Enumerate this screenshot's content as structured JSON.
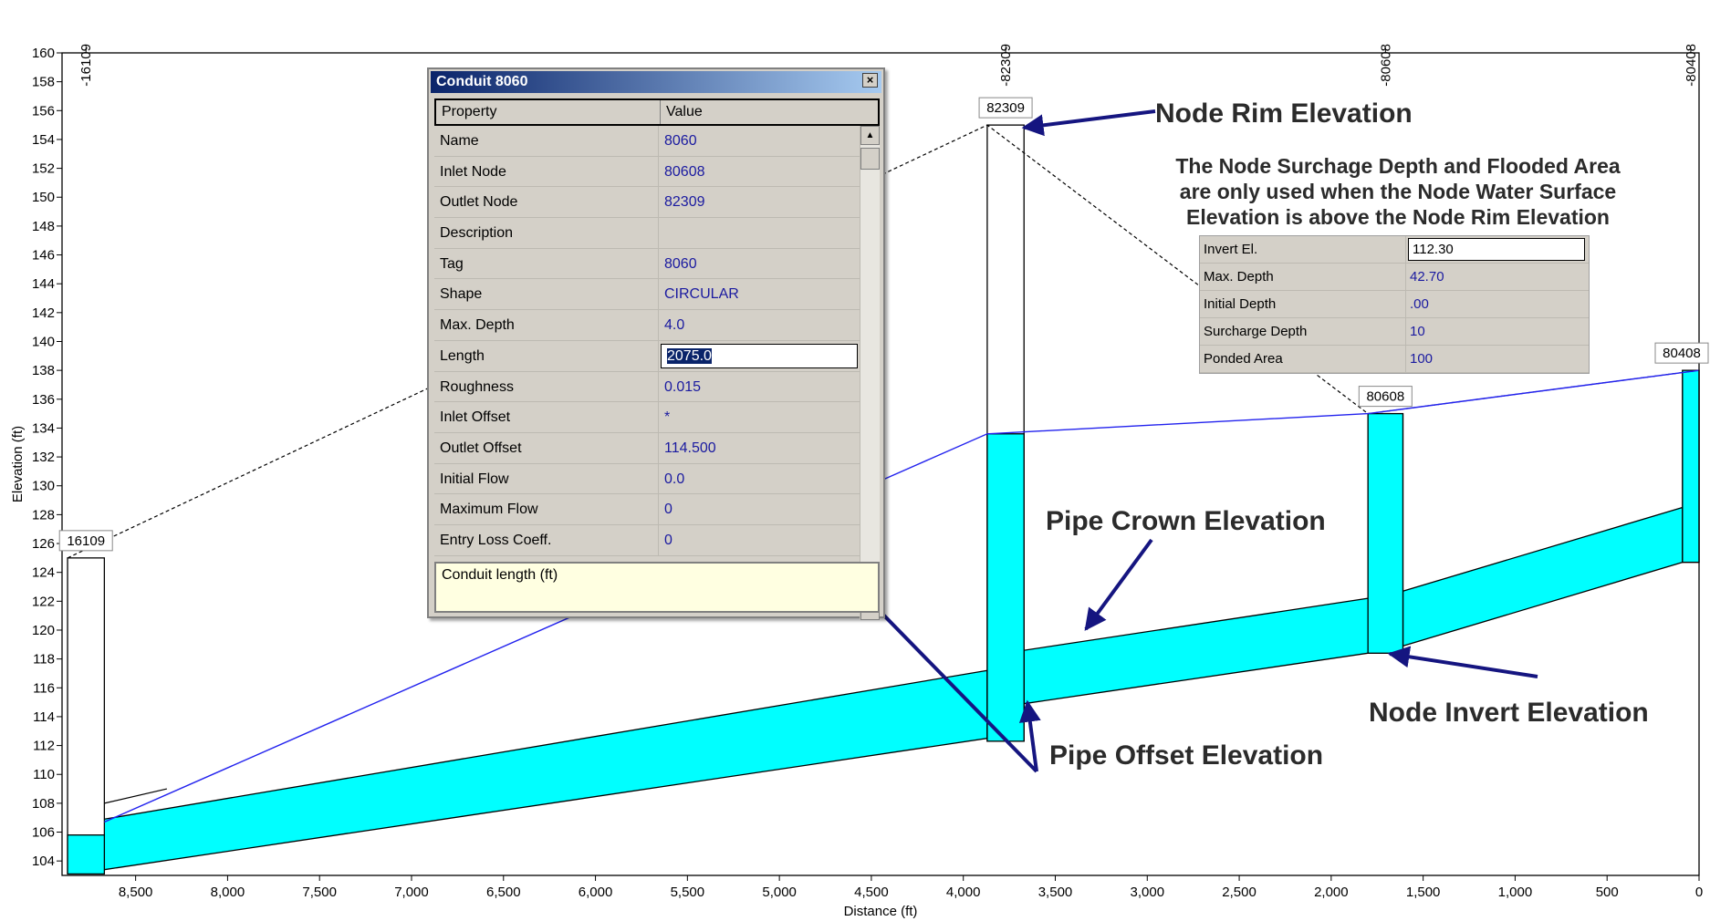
{
  "chart_data": {
    "type": "profile",
    "xlabel": "Distance (ft)",
    "ylabel": "Elevation (ft)",
    "xlim": [
      0,
      8900
    ],
    "xreversed": true,
    "ylim": [
      103,
      160
    ],
    "x_ticks": [
      8500,
      8000,
      7500,
      7000,
      6500,
      6000,
      5500,
      5000,
      4500,
      4000,
      3500,
      3000,
      2500,
      2000,
      1500,
      1000,
      500,
      0
    ],
    "x_tick_labels": [
      "8,500",
      "8,000",
      "7,500",
      "7,000",
      "6,500",
      "6,000",
      "5,500",
      "5,000",
      "4,500",
      "4,000",
      "3,500",
      "3,000",
      "2,500",
      "2,000",
      "1,500",
      "1,000",
      "500",
      "0"
    ],
    "y_ticks": [
      104,
      106,
      108,
      110,
      112,
      114,
      116,
      118,
      120,
      122,
      124,
      126,
      128,
      130,
      132,
      134,
      136,
      138,
      140,
      142,
      144,
      146,
      148,
      150,
      152,
      154,
      156,
      158,
      160
    ],
    "y_tick_labels": [
      "104",
      "106",
      "108",
      "110",
      "112",
      "114",
      "116",
      "118",
      "120",
      "122",
      "124",
      "126",
      "128",
      "130",
      "132",
      "134",
      "136",
      "138",
      "140",
      "142",
      "144",
      "146",
      "148",
      "150",
      "152",
      "154",
      "156",
      "158",
      "160"
    ],
    "nodes": [
      {
        "name": "16109",
        "x_left": 8870,
        "x_right": 8670,
        "invert": 103.1,
        "rim": 125.0,
        "water": 105.8
      },
      {
        "name": "82309",
        "x_left": 3870,
        "x_right": 3670,
        "invert": 112.3,
        "rim": 155.0,
        "water": 133.6
      },
      {
        "name": "80608",
        "x_left": 1800,
        "x_right": 1610,
        "invert": 118.4,
        "rim": 135.0,
        "water": 135.0
      },
      {
        "name": "80408",
        "x_left": 90,
        "x_right": 0,
        "invert": 124.7,
        "rim": 138.0,
        "water": 138.0
      }
    ],
    "conduits": [
      {
        "from_x": 8670,
        "to_x": 3870,
        "bottom": [
          103.4,
          112.5
        ],
        "top": [
          106.9,
          117.2
        ]
      },
      {
        "from_x": 3670,
        "to_x": 1800,
        "bottom": [
          114.9,
          118.4
        ],
        "top": [
          118.6,
          122.2
        ]
      },
      {
        "from_x": 1610,
        "to_x": 90,
        "bottom": [
          118.9,
          124.7
        ],
        "top": [
          122.7,
          128.5
        ]
      }
    ],
    "ground_line": [
      [
        8870,
        125.0
      ],
      [
        3870,
        155.0
      ],
      [
        1800,
        135.0
      ],
      [
        0,
        138.0
      ]
    ],
    "hgl": [
      [
        8670,
        106.7
      ],
      [
        3870,
        133.6
      ],
      [
        1800,
        135.0
      ],
      [
        0,
        138.0
      ]
    ],
    "pipe_crown_line": [
      [
        8670,
        108.0
      ],
      [
        8330,
        109.0
      ]
    ]
  },
  "annotations": {
    "rim": "Node Rim Elevation",
    "crown": "Pipe Crown Elevation",
    "invert": "Node Invert Elevation",
    "offset": "Pipe Offset Elevation",
    "note_line1": "The Node Surchage Depth and Flooded Area",
    "note_line2": "are only used when the Node Water Surface",
    "note_line3": "Elevation is above the Node Rim Elevation"
  },
  "conduit_window": {
    "title": "Conduit 8060",
    "close": "×",
    "header_property": "Property",
    "header_value": "Value",
    "rows": [
      {
        "name": "Name",
        "value": "8060"
      },
      {
        "name": "Inlet Node",
        "value": "80608"
      },
      {
        "name": "Outlet Node",
        "value": "82309"
      },
      {
        "name": "Description",
        "value": ""
      },
      {
        "name": "Tag",
        "value": "8060"
      },
      {
        "name": "Shape",
        "value": "CIRCULAR"
      },
      {
        "name": "Max. Depth",
        "value": "4.0"
      },
      {
        "name": "Length",
        "value": "2075.0"
      },
      {
        "name": "Roughness",
        "value": "0.015"
      },
      {
        "name": "Inlet Offset",
        "value": "*"
      },
      {
        "name": "Outlet Offset",
        "value": "114.500"
      },
      {
        "name": "Initial Flow",
        "value": "0.0"
      },
      {
        "name": "Maximum Flow",
        "value": "0"
      },
      {
        "name": "Entry Loss Coeff.",
        "value": "0"
      }
    ],
    "description": "Conduit length (ft)"
  },
  "node_panel": {
    "rows": [
      {
        "name": "Invert El.",
        "value": "112.30"
      },
      {
        "name": "Max. Depth",
        "value": "42.70"
      },
      {
        "name": "Initial Depth",
        "value": ".00"
      },
      {
        "name": "Surcharge Depth",
        "value": "10"
      },
      {
        "name": "Ponded Area",
        "value": "100"
      }
    ]
  },
  "colors": {
    "fill": "#00ffff",
    "hgl": "#2222ee",
    "annotation_arrow": "#151580"
  }
}
